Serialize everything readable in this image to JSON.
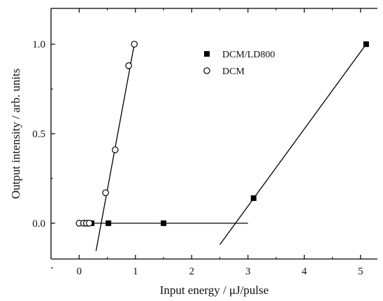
{
  "chart_data": {
    "type": "scatter",
    "title": "",
    "xlabel": "Input energy / μJ/pulse",
    "ylabel": "Output intensity / arb. units",
    "xlim": [
      -0.5,
      5.3
    ],
    "ylim": [
      -0.2,
      1.2
    ],
    "x_ticks": [
      0,
      1,
      2,
      3,
      4,
      5
    ],
    "y_ticks": [
      0.0,
      0.5,
      1.0
    ],
    "x_tick_labels": [
      "0",
      "1",
      "2",
      "3",
      "4",
      "5"
    ],
    "y_tick_labels": [
      "0.0",
      "0.5",
      "1.0"
    ],
    "grid": false,
    "legend_position": "top-center",
    "series": [
      {
        "name": "DCM/LD800",
        "marker": "filled-square",
        "color": "#000000",
        "points": [
          {
            "x": 0.22,
            "y": 0.0
          },
          {
            "x": 0.52,
            "y": 0.0
          },
          {
            "x": 1.5,
            "y": 0.0
          },
          {
            "x": 3.1,
            "y": 0.14
          },
          {
            "x": 5.1,
            "y": 1.0
          }
        ]
      },
      {
        "name": "DCM",
        "marker": "open-circle",
        "color": "#000000",
        "points": [
          {
            "x": 0.0,
            "y": 0.0
          },
          {
            "x": 0.08,
            "y": 0.0
          },
          {
            "x": 0.13,
            "y": 0.0
          },
          {
            "x": 0.18,
            "y": 0.0
          },
          {
            "x": 0.47,
            "y": 0.17
          },
          {
            "x": 0.64,
            "y": 0.41
          },
          {
            "x": 0.88,
            "y": 0.88
          },
          {
            "x": 0.98,
            "y": 1.0
          }
        ]
      }
    ],
    "fit_lines": [
      {
        "from": [
          0.3,
          -0.155
        ],
        "to": [
          0.98,
          1.0
        ]
      },
      {
        "from": [
          2.5,
          -0.12
        ],
        "to": [
          5.1,
          1.0
        ]
      },
      {
        "from": [
          0.2,
          0.0
        ],
        "to": [
          3.0,
          0.0
        ]
      }
    ]
  }
}
